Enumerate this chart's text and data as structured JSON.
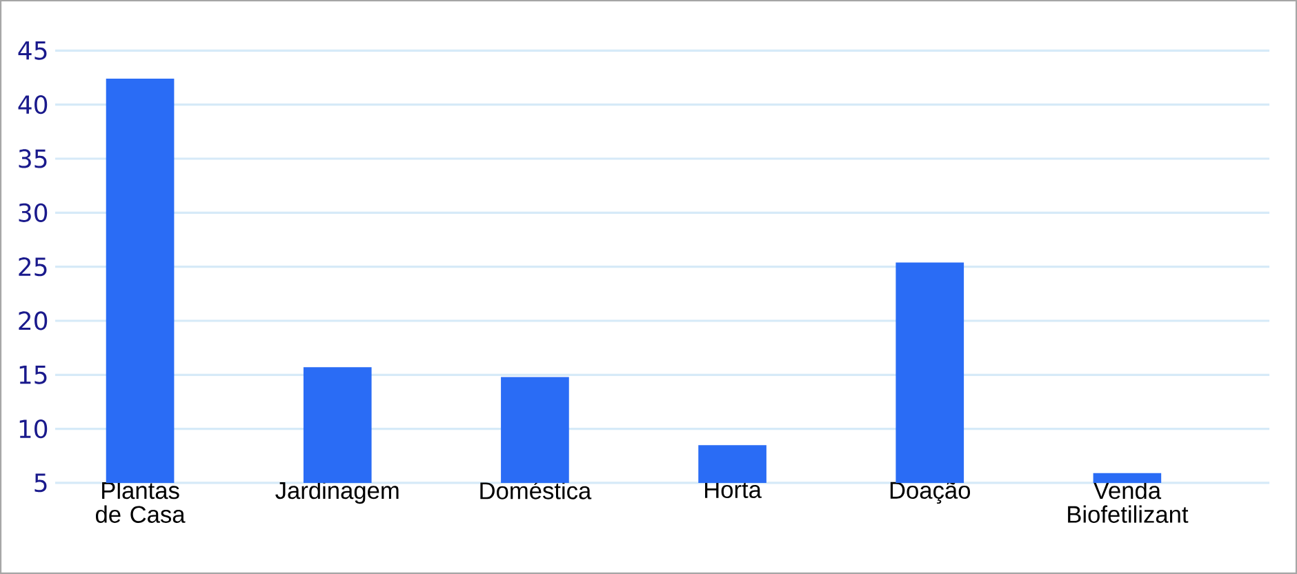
{
  "chart_data": {
    "type": "bar",
    "categories": [
      "Plantas de Casa",
      "Jardinagem",
      "Doméstica",
      "Horta",
      "Doação",
      "Venda Biofetilizant"
    ],
    "values": [
      42.4,
      15.7,
      14.8,
      8.5,
      25.4,
      5.9
    ],
    "color": "#2a6cf5",
    "ylim": [
      5,
      45
    ],
    "yticks": [
      5,
      10,
      15,
      20,
      25,
      30,
      35,
      40,
      45
    ],
    "grid": "y"
  }
}
